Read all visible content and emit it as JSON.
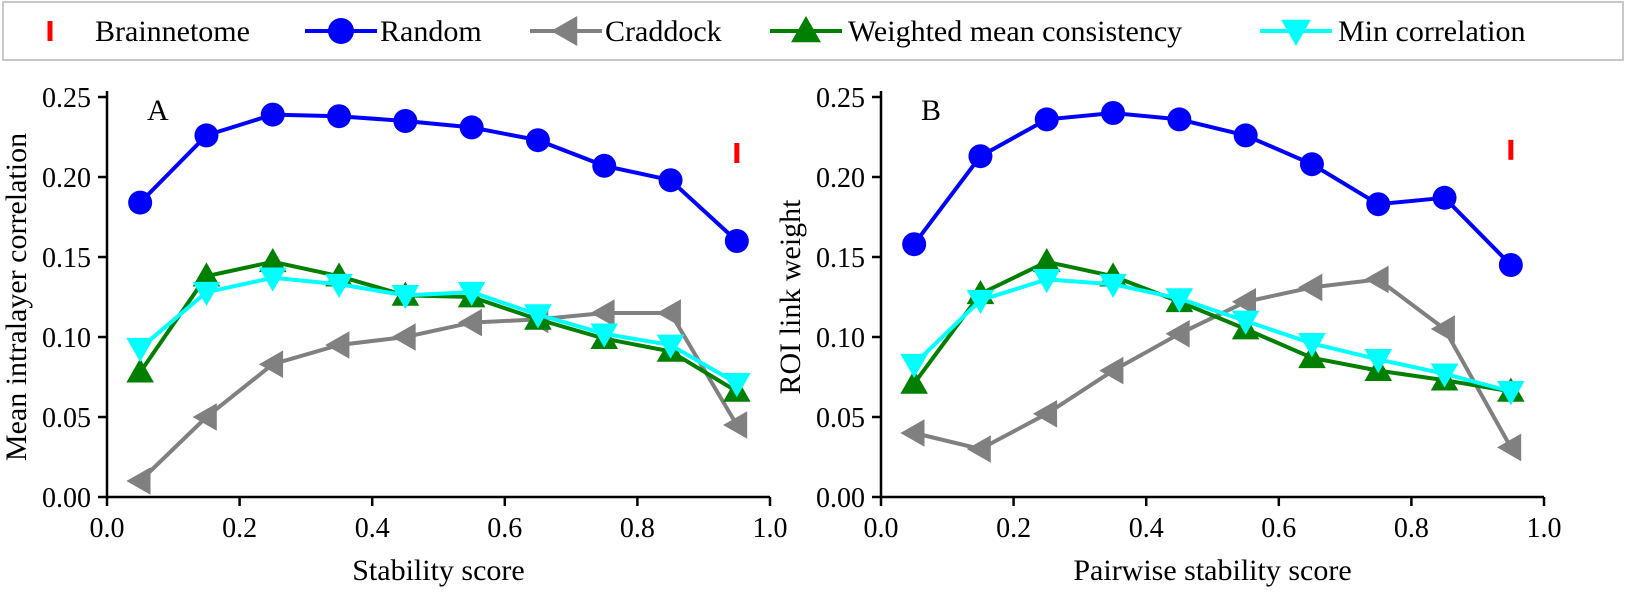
{
  "legend": {
    "entries": [
      {
        "name": "Brainnetome",
        "color": "#ff0000",
        "marker": "bar"
      },
      {
        "name": "Random",
        "color": "#0000ff",
        "marker": "circle"
      },
      {
        "name": "Craddock",
        "color": "#808080",
        "marker": "triangle-left"
      },
      {
        "name": "Weighted mean consistency",
        "color": "#007f00",
        "marker": "triangle-up"
      },
      {
        "name": "Min correlation",
        "color": "#00ffff",
        "marker": "triangle-down"
      }
    ]
  },
  "chart_data": [
    {
      "type": "line",
      "panel": "A",
      "xlabel": "Stability score",
      "ylabel": "Mean intralayer correlation",
      "xlim": [
        0.0,
        1.0
      ],
      "ylim": [
        0.0,
        0.25
      ],
      "xticks": [
        "0.0",
        "0.2",
        "0.4",
        "0.6",
        "0.8",
        "1.0"
      ],
      "yticks": [
        "0.00",
        "0.05",
        "0.10",
        "0.15",
        "0.20",
        "0.25"
      ],
      "x": [
        0.05,
        0.15,
        0.25,
        0.35,
        0.45,
        0.55,
        0.65,
        0.75,
        0.85,
        0.95
      ],
      "brainnetome": {
        "x": 0.95,
        "y": 0.215
      },
      "series": [
        {
          "name": "Random",
          "values": [
            0.184,
            0.226,
            0.239,
            0.238,
            0.235,
            0.231,
            0.223,
            0.207,
            0.198,
            0.16
          ]
        },
        {
          "name": "Craddock",
          "values": [
            0.01,
            0.05,
            0.083,
            0.095,
            0.1,
            0.109,
            0.111,
            0.115,
            0.115,
            0.045
          ]
        },
        {
          "name": "Weighted mean consistency",
          "values": [
            0.078,
            0.138,
            0.147,
            0.138,
            0.126,
            0.125,
            0.111,
            0.099,
            0.091,
            0.066
          ]
        },
        {
          "name": "Min correlation",
          "values": [
            0.093,
            0.128,
            0.137,
            0.133,
            0.126,
            0.128,
            0.114,
            0.102,
            0.095,
            0.071
          ]
        }
      ]
    },
    {
      "type": "line",
      "panel": "B",
      "xlabel": "Pairwise stability score",
      "ylabel": "ROI link weight",
      "xlim": [
        0.0,
        1.0
      ],
      "ylim": [
        0.0,
        0.25
      ],
      "xticks": [
        "0.0",
        "0.2",
        "0.4",
        "0.6",
        "0.8",
        "1.0"
      ],
      "yticks": [
        "0.00",
        "0.05",
        "0.10",
        "0.15",
        "0.20",
        "0.25"
      ],
      "x": [
        0.05,
        0.15,
        0.25,
        0.35,
        0.45,
        0.55,
        0.65,
        0.75,
        0.85,
        0.95
      ],
      "brainnetome": {
        "x": 0.95,
        "y": 0.217
      },
      "series": [
        {
          "name": "Random",
          "values": [
            0.158,
            0.213,
            0.236,
            0.24,
            0.236,
            0.226,
            0.208,
            0.183,
            0.187,
            0.145
          ]
        },
        {
          "name": "Craddock",
          "values": [
            0.04,
            0.03,
            0.052,
            0.079,
            0.102,
            0.122,
            0.131,
            0.136,
            0.105,
            0.031
          ]
        },
        {
          "name": "Weighted mean consistency",
          "values": [
            0.071,
            0.127,
            0.147,
            0.138,
            0.122,
            0.105,
            0.087,
            0.079,
            0.073,
            0.066
          ]
        },
        {
          "name": "Min correlation",
          "values": [
            0.083,
            0.123,
            0.136,
            0.133,
            0.124,
            0.11,
            0.096,
            0.086,
            0.077,
            0.066
          ]
        }
      ]
    }
  ]
}
